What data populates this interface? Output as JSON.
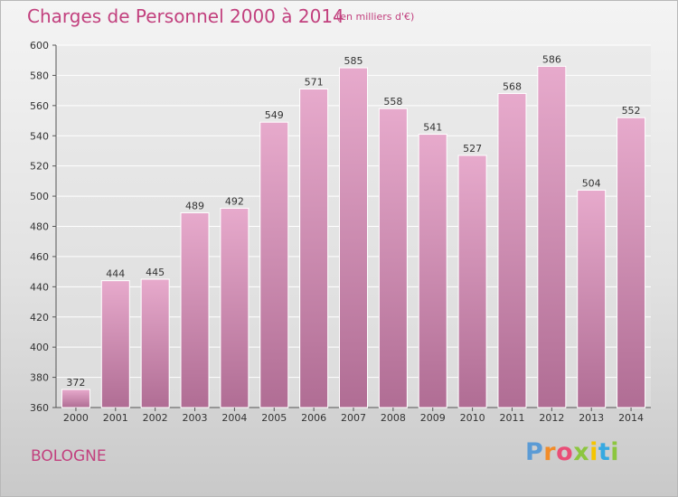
{
  "header": {
    "title": "Charges de Personnel 2000 à 2014",
    "subtitle": "(en milliers d'€)"
  },
  "footer": {
    "commune": "BOLOGNE",
    "logo": {
      "letters": [
        "P",
        "r",
        "o",
        "x",
        "i",
        "t",
        "i"
      ],
      "colors": [
        "#5b9bd5",
        "#f28c28",
        "#e94e77",
        "#8cc63f",
        "#f5c500",
        "#36a9e1",
        "#8cc63f"
      ]
    }
  },
  "colors": {
    "bar_top": "#e7aacc",
    "bar_bottom": "#b06d94",
    "text_accent": "#c2407e"
  },
  "chart_data": {
    "type": "bar",
    "title": "Charges de Personnel 2000 à 2014",
    "categories": [
      "2000",
      "2001",
      "2002",
      "2003",
      "2004",
      "2005",
      "2006",
      "2007",
      "2008",
      "2009",
      "2010",
      "2011",
      "2012",
      "2013",
      "2014"
    ],
    "values": [
      372,
      444,
      445,
      489,
      492,
      549,
      571,
      585,
      558,
      541,
      527,
      568,
      586,
      504,
      552
    ],
    "xlabel": "",
    "ylabel": "",
    "ylim": [
      360,
      600
    ],
    "yticks": [
      360,
      380,
      400,
      420,
      440,
      460,
      480,
      500,
      520,
      540,
      560,
      580,
      600
    ],
    "grid": true,
    "legend": "none"
  }
}
